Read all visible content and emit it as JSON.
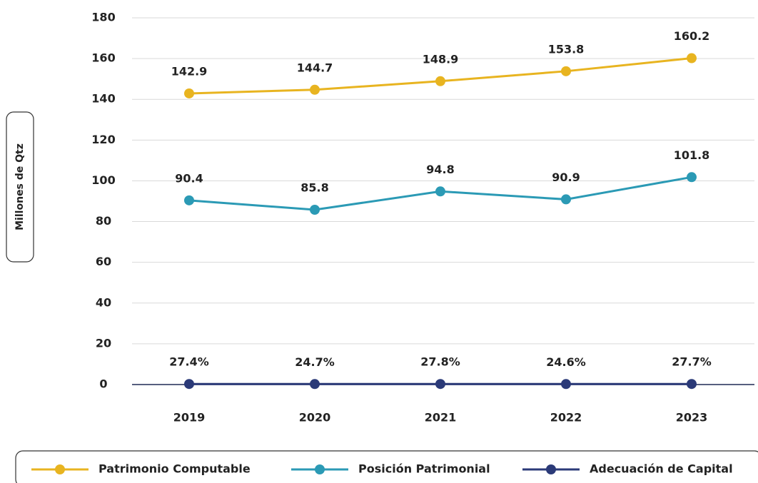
{
  "chart_data": {
    "type": "line",
    "y_label": "Millones de Qtz",
    "categories": [
      "2019",
      "2020",
      "2021",
      "2022",
      "2023"
    ],
    "series": [
      {
        "name": "Patrimonio Computable",
        "color": "#e8b420",
        "values": [
          142.9,
          144.7,
          148.9,
          153.8,
          160.2
        ]
      },
      {
        "name": "Posición Patrimonial",
        "color": "#2b9ab5",
        "values": [
          90.4,
          85.8,
          94.8,
          90.9,
          101.8
        ]
      },
      {
        "name": "Adecuación de Capital",
        "color": "#2b3a78",
        "values": [
          0.274,
          0.247,
          0.278,
          0.246,
          0.277
        ],
        "value_labels": [
          "27.4%",
          "24.7%",
          "27.8%",
          "24.6%",
          "27.7%"
        ]
      }
    ],
    "ylim": [
      0,
      180
    ],
    "yticks": [
      0,
      20,
      40,
      60,
      80,
      100,
      120,
      140,
      160,
      180
    ],
    "grid": true,
    "legend": "bottom"
  }
}
